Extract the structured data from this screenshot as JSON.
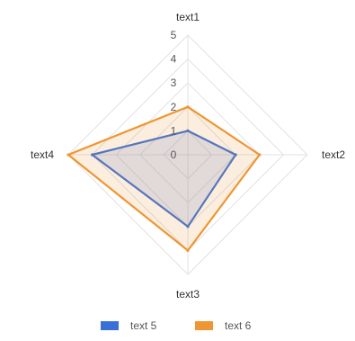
{
  "chart_data": {
    "type": "radar",
    "axes": [
      "text1",
      "text2",
      "text3",
      "text4"
    ],
    "rlim": [
      0,
      5
    ],
    "ticks": [
      "0",
      "1",
      "2",
      "3",
      "4",
      "5"
    ],
    "grid": true,
    "legend_position": "bottom",
    "series": [
      {
        "name": "text 5",
        "values": [
          1,
          2,
          3,
          4
        ],
        "color": "#3a6fd8"
      },
      {
        "name": "text 6",
        "values": [
          2,
          3,
          4,
          5
        ],
        "color": "#ee9632"
      }
    ]
  }
}
